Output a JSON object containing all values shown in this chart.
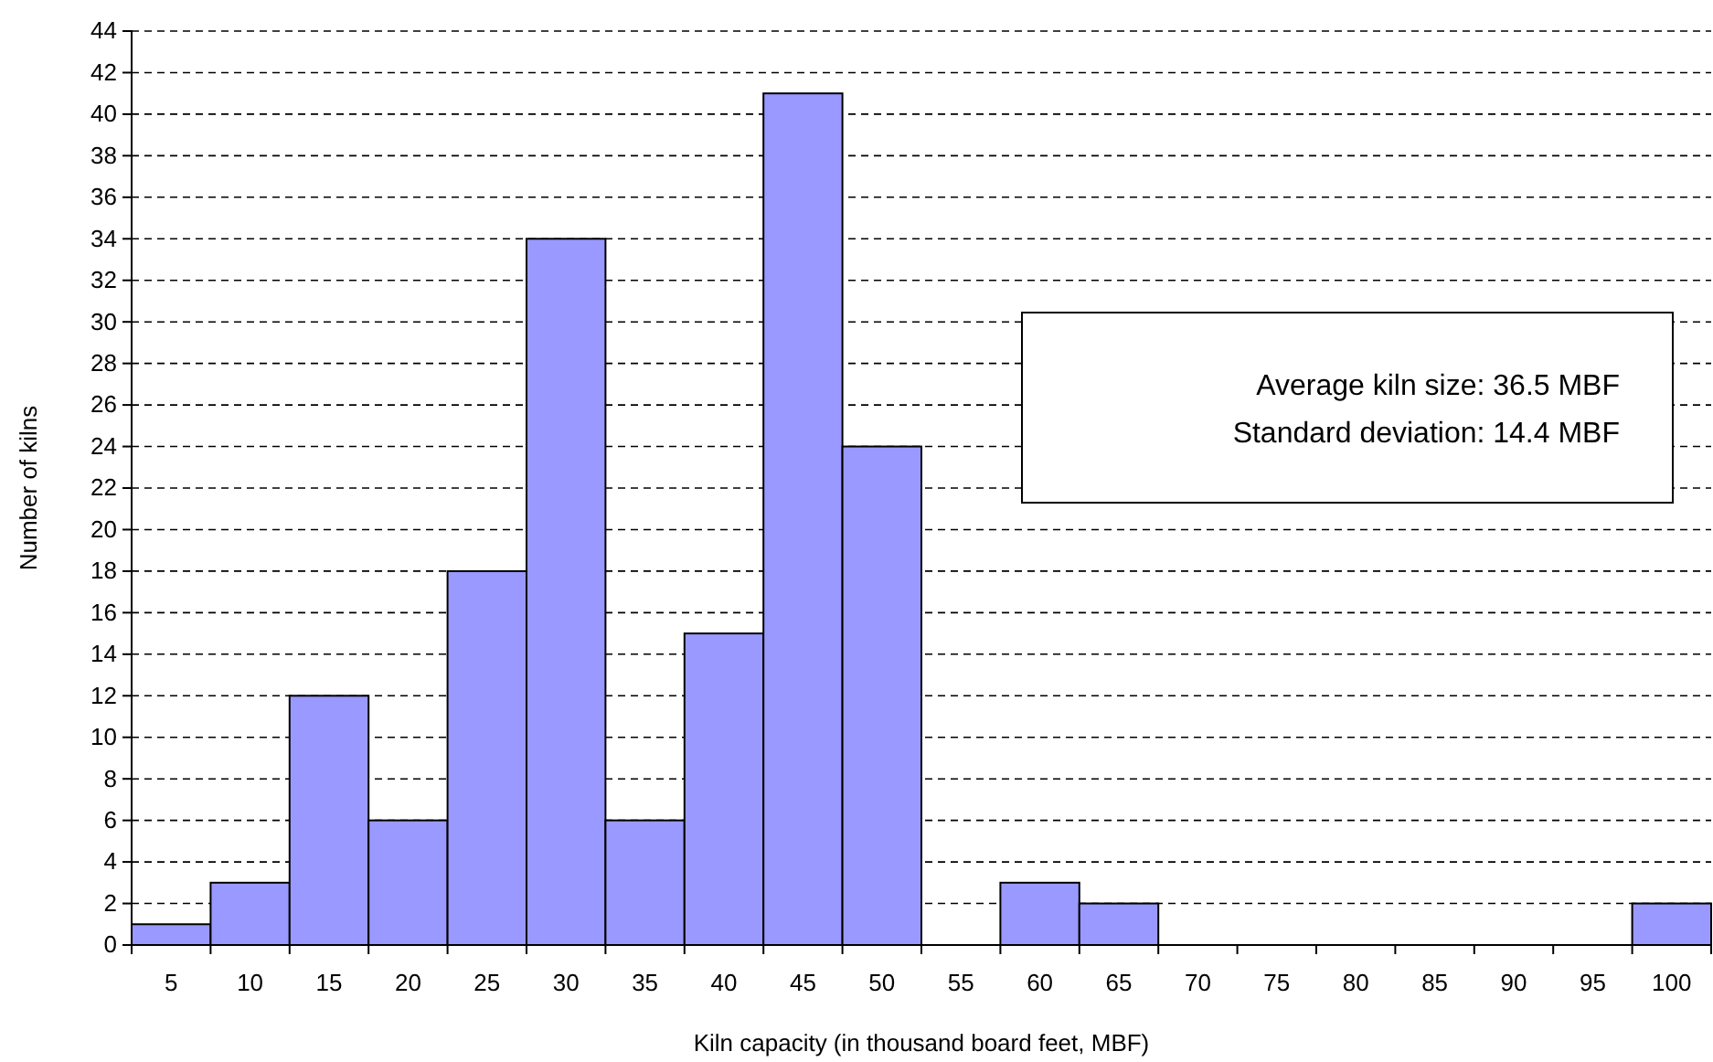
{
  "chart_data": {
    "type": "bar",
    "xlabel": "Kiln capacity (in thousand board feet, MBF)",
    "ylabel": "Number of kilns",
    "categories": [
      "5",
      "10",
      "15",
      "20",
      "25",
      "30",
      "35",
      "40",
      "45",
      "50",
      "55",
      "60",
      "65",
      "70",
      "75",
      "80",
      "85",
      "90",
      "95",
      "100"
    ],
    "values": [
      1,
      3,
      12,
      6,
      18,
      34,
      6,
      15,
      41,
      24,
      0,
      3,
      2,
      0,
      0,
      0,
      0,
      0,
      0,
      2
    ],
    "color": "#9999ff",
    "ylim": [
      0,
      44
    ],
    "yticks": [
      0,
      2,
      4,
      6,
      8,
      10,
      12,
      14,
      16,
      18,
      20,
      22,
      24,
      26,
      28,
      30,
      32,
      34,
      36,
      38,
      40,
      42,
      44
    ],
    "grid": "y",
    "annotations": [
      "Average kiln size: 36.5 MBF",
      "Standard deviation: 14.4 MBF"
    ]
  }
}
